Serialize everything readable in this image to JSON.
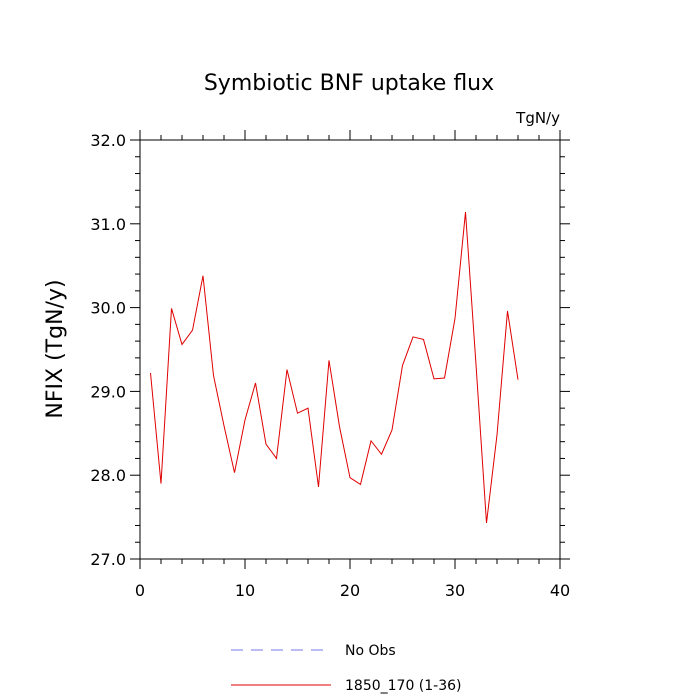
{
  "chart_data": {
    "type": "line",
    "title": "Symbiotic BNF uptake flux",
    "units": "TgN/y",
    "ylabel": "NFIX  (TgN/y)",
    "xlabel": "",
    "xlim": [
      0,
      40
    ],
    "ylim": [
      27.0,
      32.0
    ],
    "xticks": [
      0,
      10,
      20,
      30,
      40
    ],
    "xtick_labels": [
      "0",
      "10",
      "20",
      "30",
      "40"
    ],
    "yticks": [
      27.0,
      28.0,
      29.0,
      30.0,
      31.0,
      32.0
    ],
    "ytick_labels": [
      "27.0",
      "28.0",
      "29.0",
      "30.0",
      "31.0",
      "32.0"
    ],
    "grid": false,
    "legend_position": "bottom",
    "series": [
      {
        "name": "1850_170 (1-36)",
        "color": "#e00000",
        "dash": "solid",
        "x": [
          1,
          2,
          3,
          4,
          5,
          6,
          7,
          8,
          9,
          10,
          11,
          12,
          13,
          14,
          15,
          16,
          17,
          18,
          19,
          20,
          21,
          22,
          23,
          24,
          25,
          26,
          27,
          28,
          29,
          30,
          31,
          32,
          33,
          34,
          35,
          36
        ],
        "y": [
          29.22,
          27.9,
          29.99,
          29.56,
          29.73,
          30.38,
          29.19,
          28.59,
          28.03,
          28.66,
          29.1,
          28.37,
          28.2,
          29.26,
          28.74,
          28.8,
          27.86,
          29.37,
          28.58,
          27.97,
          27.89,
          28.41,
          28.25,
          28.54,
          29.31,
          29.65,
          29.62,
          29.15,
          29.16,
          29.87,
          31.14,
          29.32,
          27.43,
          28.48,
          29.96,
          29.14
        ]
      }
    ],
    "legend": [
      {
        "label": "No Obs",
        "color": "#7777ee",
        "dash": "dashed"
      },
      {
        "label": "1850_170 (1-36)",
        "color": "#e00000",
        "dash": "solid"
      }
    ]
  }
}
